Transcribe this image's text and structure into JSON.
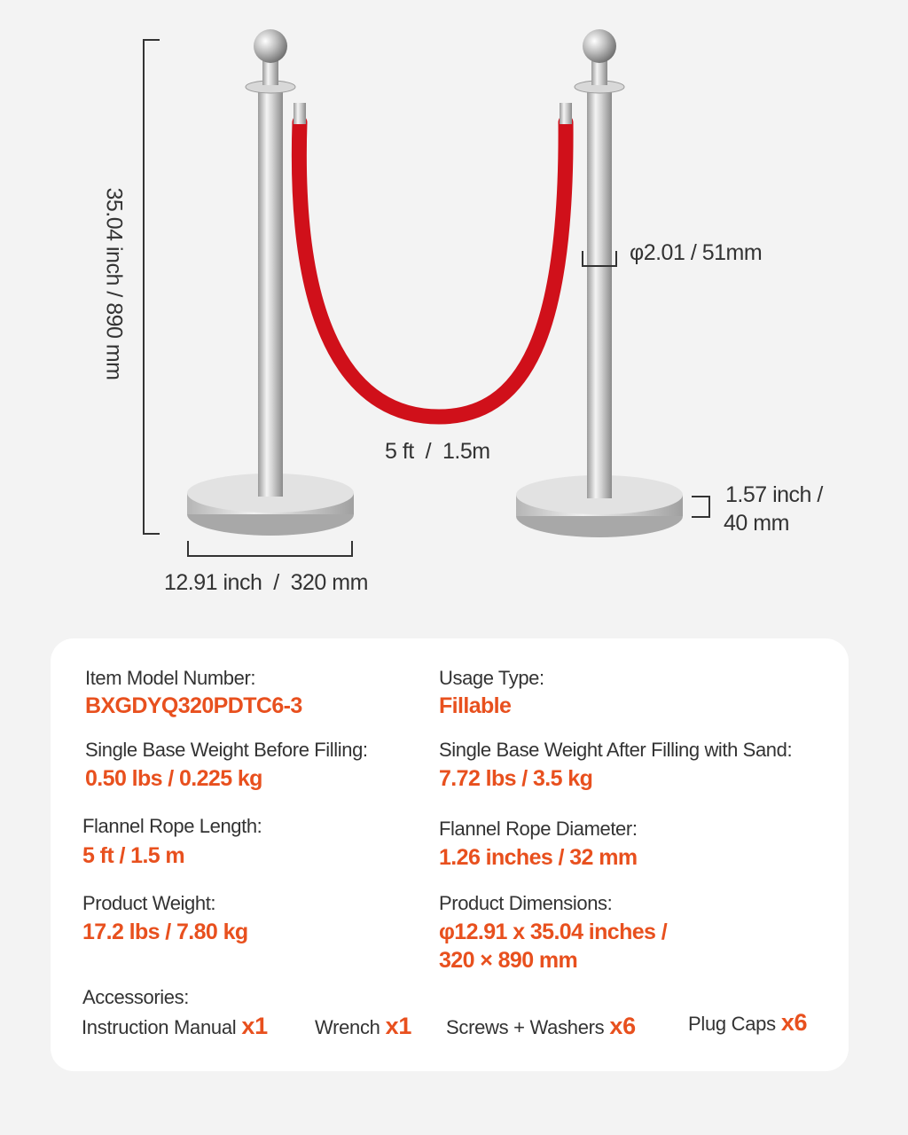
{
  "dimensions": {
    "height": "35.04 inch / 890 mm",
    "base_diameter": "12.91 inch  /  320 mm",
    "pole_diameter": "φ2.01 / 51mm",
    "rope_length": "5 ft  /  1.5m",
    "base_height_line1": "1.57 inch /",
    "base_height_line2": "40 mm"
  },
  "colors": {
    "accent": "#e8501e",
    "rope": "#d0101a",
    "background": "#f3f3f3"
  },
  "specs": [
    {
      "label": "Item Model Number:",
      "value": "BXGDYQ320PDTC6-3"
    },
    {
      "label": "Usage Type:",
      "value": "Fillable"
    },
    {
      "label": "Single Base Weight Before Filling:",
      "value": "0.50 lbs / 0.225 kg"
    },
    {
      "label": "Single Base Weight After Filling with Sand:",
      "value": "7.72 lbs / 3.5 kg"
    },
    {
      "label": "Flannel Rope Length:",
      "value": "5 ft / 1.5 m"
    },
    {
      "label": "Flannel Rope Diameter:",
      "value": "1.26 inches / 32 mm"
    },
    {
      "label": "Product Weight:",
      "value": "17.2 lbs / 7.80 kg"
    },
    {
      "label": "Product Dimensions:",
      "value": "φ12.91 x 35.04 inches /",
      "value2": "320 × 890 mm"
    }
  ],
  "accessories": {
    "label": "Accessories:",
    "items": [
      {
        "name": "Instruction Manual",
        "qty": "x1"
      },
      {
        "name": "Wrench",
        "qty": "x1"
      },
      {
        "name": "Screws + Washers",
        "qty": "x6"
      },
      {
        "name": "Plug Caps",
        "qty": "x6"
      }
    ]
  }
}
